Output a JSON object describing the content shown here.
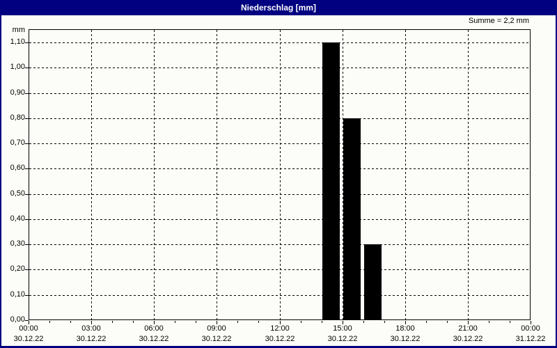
{
  "window": {
    "title": "Niederschlag [mm]",
    "summary_label": "Summe = 2,2 mm",
    "colors": {
      "titlebar_bg": "#000080",
      "titlebar_text": "#FFFFFF",
      "window_bg": "#FCFCF8",
      "border": "#000080",
      "axis": "#000000",
      "grid": "#000000",
      "bar_fill": "#000000",
      "label_text": "#000000"
    }
  },
  "chart_data": {
    "type": "bar",
    "title": "Niederschlag [mm]",
    "summary": "Summe = 2,2 mm",
    "sum_mm": 2.2,
    "ylabel": "mm",
    "ylim": [
      0,
      1.1525
    ],
    "grid": "dashed, both axes",
    "legend": "none",
    "yticks": [
      {
        "value": 0.0,
        "label": "0,00"
      },
      {
        "value": 0.1,
        "label": "0,10"
      },
      {
        "value": 0.2,
        "label": "0,20"
      },
      {
        "value": 0.3,
        "label": "0,30"
      },
      {
        "value": 0.4,
        "label": "0,40"
      },
      {
        "value": 0.5,
        "label": "0,50"
      },
      {
        "value": 0.6,
        "label": "0,60"
      },
      {
        "value": 0.7,
        "label": "0,70"
      },
      {
        "value": 0.8,
        "label": "0,80"
      },
      {
        "value": 0.9,
        "label": "0,90"
      },
      {
        "value": 1.0,
        "label": "1,00"
      },
      {
        "value": 1.1,
        "label": "1,10"
      }
    ],
    "x_axis": {
      "unit": "hours",
      "range_hours": [
        0,
        24
      ],
      "minor_tick_every_hours": 1,
      "major_ticks": [
        {
          "hour": 0,
          "time": "00:00",
          "date": "30.12.22"
        },
        {
          "hour": 3,
          "time": "03:00",
          "date": "30.12.22"
        },
        {
          "hour": 6,
          "time": "06:00",
          "date": "30.12.22"
        },
        {
          "hour": 9,
          "time": "09:00",
          "date": "30.12.22"
        },
        {
          "hour": 12,
          "time": "12:00",
          "date": "30.12.22"
        },
        {
          "hour": 15,
          "time": "15:00",
          "date": "30.12.22"
        },
        {
          "hour": 18,
          "time": "18:00",
          "date": "30.12.22"
        },
        {
          "hour": 21,
          "time": "21:00",
          "date": "30.12.22"
        },
        {
          "hour": 24,
          "time": "00:00",
          "date": "31.12.22"
        }
      ]
    },
    "bars": [
      {
        "start_hour": 14,
        "end_hour": 15,
        "value_mm": 1.1
      },
      {
        "start_hour": 15,
        "end_hour": 16,
        "value_mm": 0.8
      },
      {
        "start_hour": 16,
        "end_hour": 17,
        "value_mm": 0.3
      }
    ]
  }
}
